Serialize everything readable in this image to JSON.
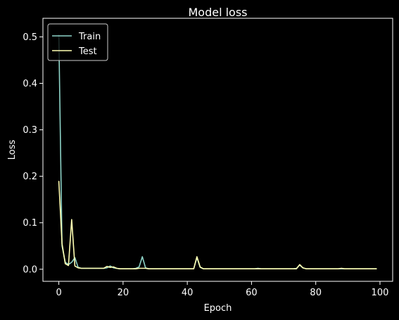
{
  "chart_data": {
    "type": "line",
    "title": "Model loss",
    "xlabel": "Epoch",
    "ylabel": "Loss",
    "xlim": [
      -4.95,
      103.95
    ],
    "ylim": [
      -0.026,
      0.54
    ],
    "xticks": [
      0,
      20,
      40,
      60,
      80,
      100
    ],
    "yticks": [
      0.0,
      0.1,
      0.2,
      0.3,
      0.4,
      0.5
    ],
    "xtick_labels": [
      "0",
      "20",
      "40",
      "60",
      "80",
      "100"
    ],
    "ytick_labels": [
      "0.0",
      "0.1",
      "0.2",
      "0.3",
      "0.4",
      "0.5"
    ],
    "grid": false,
    "legend_position": "upper-left",
    "x": [
      0,
      1,
      2,
      3,
      4,
      5,
      6,
      7,
      8,
      9,
      10,
      11,
      12,
      13,
      14,
      15,
      16,
      17,
      18,
      19,
      20,
      21,
      22,
      23,
      24,
      25,
      26,
      27,
      28,
      29,
      30,
      31,
      32,
      33,
      34,
      35,
      36,
      37,
      38,
      39,
      40,
      41,
      42,
      43,
      44,
      45,
      46,
      47,
      48,
      49,
      50,
      51,
      52,
      53,
      54,
      55,
      56,
      57,
      58,
      59,
      60,
      61,
      62,
      63,
      64,
      65,
      66,
      67,
      68,
      69,
      70,
      71,
      72,
      73,
      74,
      75,
      76,
      77,
      78,
      79,
      80,
      81,
      82,
      83,
      84,
      85,
      86,
      87,
      88,
      89,
      90,
      91,
      92,
      93,
      94,
      95,
      96,
      97,
      98,
      99
    ],
    "series": [
      {
        "name": "Train",
        "color": "#8dd3c7",
        "values": [
          0.505,
          0.05,
          0.015,
          0.01,
          0.015,
          0.025,
          0.004,
          0.002,
          0.002,
          0.002,
          0.002,
          0.002,
          0.002,
          0.002,
          0.002,
          0.003,
          0.007,
          0.003,
          0.002,
          0.001,
          0.001,
          0.001,
          0.001,
          0.001,
          0.002,
          0.005,
          0.027,
          0.003,
          0.001,
          0.001,
          0.001,
          0.001,
          0.001,
          0.001,
          0.001,
          0.001,
          0.001,
          0.001,
          0.001,
          0.001,
          0.001,
          0.001,
          0.001,
          0.025,
          0.004,
          0.001,
          0.001,
          0.001,
          0.001,
          0.001,
          0.001,
          0.001,
          0.001,
          0.001,
          0.001,
          0.001,
          0.001,
          0.001,
          0.001,
          0.001,
          0.001,
          0.001,
          0.002,
          0.001,
          0.001,
          0.001,
          0.001,
          0.001,
          0.001,
          0.001,
          0.001,
          0.001,
          0.001,
          0.001,
          0.002,
          0.009,
          0.003,
          0.001,
          0.001,
          0.001,
          0.001,
          0.001,
          0.001,
          0.001,
          0.001,
          0.001,
          0.001,
          0.001,
          0.001,
          0.001,
          0.001,
          0.001,
          0.001,
          0.001,
          0.001,
          0.001,
          0.001,
          0.001,
          0.001,
          0.001
        ]
      },
      {
        "name": "Test",
        "color": "#ffffb3",
        "values": [
          0.19,
          0.055,
          0.012,
          0.008,
          0.107,
          0.007,
          0.003,
          0.002,
          0.002,
          0.002,
          0.002,
          0.002,
          0.002,
          0.002,
          0.002,
          0.006,
          0.004,
          0.005,
          0.002,
          0.001,
          0.001,
          0.001,
          0.001,
          0.001,
          0.001,
          0.002,
          0.002,
          0.002,
          0.001,
          0.001,
          0.001,
          0.001,
          0.001,
          0.001,
          0.001,
          0.001,
          0.001,
          0.001,
          0.001,
          0.001,
          0.001,
          0.001,
          0.001,
          0.027,
          0.005,
          0.001,
          0.001,
          0.001,
          0.001,
          0.001,
          0.001,
          0.001,
          0.001,
          0.001,
          0.001,
          0.001,
          0.001,
          0.001,
          0.001,
          0.001,
          0.001,
          0.001,
          0.001,
          0.001,
          0.001,
          0.001,
          0.001,
          0.001,
          0.001,
          0.001,
          0.001,
          0.001,
          0.001,
          0.001,
          0.001,
          0.01,
          0.003,
          0.001,
          0.001,
          0.001,
          0.001,
          0.001,
          0.001,
          0.001,
          0.001,
          0.001,
          0.001,
          0.001,
          0.002,
          0.001,
          0.001,
          0.001,
          0.001,
          0.001,
          0.001,
          0.001,
          0.001,
          0.001,
          0.001,
          0.001
        ]
      }
    ]
  },
  "colors": {
    "background": "#000000",
    "foreground": "#ffffff"
  }
}
